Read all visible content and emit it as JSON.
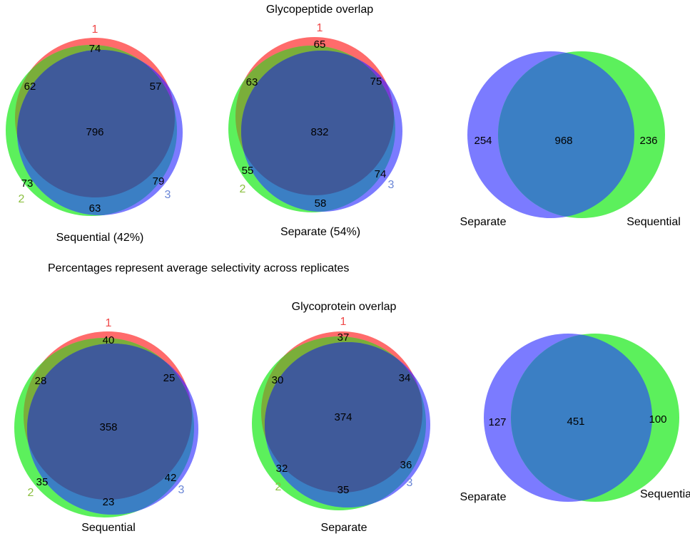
{
  "colors": {
    "set1": "#ff6b6b",
    "set2": "#5cf05c",
    "set3": "#7b7bff",
    "overlap_dark": "#3f5a9a",
    "overlap_purple": "#7a3bd6",
    "overlap_olive": "#7aae3a",
    "overlap_teal": "#3b7fc4",
    "label1": "#f04848",
    "label2": "#8cc040",
    "label3": "#6a86d6"
  },
  "top": {
    "title": "Glycopeptide overlap",
    "note": "Percentages represent average selectivity across replicates",
    "sequential": {
      "caption": "Sequential (42%)",
      "set_labels": [
        "1",
        "2",
        "3"
      ],
      "only1": "74",
      "only2": "73",
      "only3": "79",
      "r12": "62",
      "r13": "57",
      "r23": "63",
      "all": "796"
    },
    "separate": {
      "caption": "Separate (54%)",
      "set_labels": [
        "1",
        "2",
        "3"
      ],
      "only1": "65",
      "only2": "55",
      "only3": "74",
      "r12": "63",
      "r13": "75",
      "r23": "58",
      "all": "832"
    },
    "comparison": {
      "left_label": "Separate",
      "right_label": "Sequential",
      "left_only": "254",
      "both": "968",
      "right_only": "236"
    }
  },
  "bottom": {
    "title": "Glycoprotein overlap",
    "sequential": {
      "caption": "Sequential",
      "set_labels": [
        "1",
        "2",
        "3"
      ],
      "only1": "40",
      "only2": "35",
      "only3": "42",
      "r12": "28",
      "r13": "25",
      "r23": "23",
      "all": "358"
    },
    "separate": {
      "caption": "Separate",
      "set_labels": [
        "1",
        "2",
        "3"
      ],
      "only1": "37",
      "only2": "32",
      "only3": "36",
      "r12": "30",
      "r13": "34",
      "r23": "35",
      "all": "374"
    },
    "comparison": {
      "left_label": "Separate",
      "right_label": "Sequential",
      "left_only": "127",
      "both": "451",
      "right_only": "100"
    }
  }
}
